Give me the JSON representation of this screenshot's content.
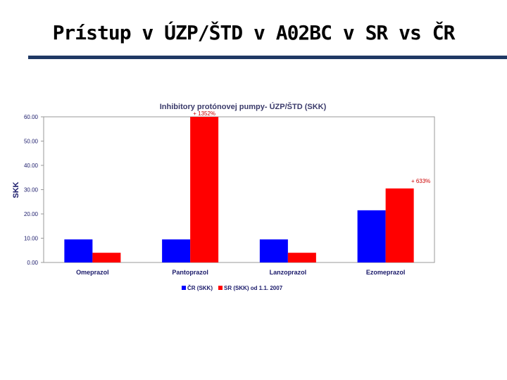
{
  "slide": {
    "title": "Prístup v ÚZP/ŠTD v A02BC v SR vs ČR"
  },
  "chart_data": {
    "type": "bar",
    "title": "Inhibitory protónovej pumpy- ÚZP/ŠTD (SKK)",
    "xlabel": "",
    "ylabel": "SKK",
    "ylim": [
      0,
      60
    ],
    "yticks": [
      0,
      10,
      20,
      30,
      40,
      50,
      60
    ],
    "ytick_labels": [
      "0.00",
      "10.00",
      "20.00",
      "30.00",
      "40.00",
      "50.00",
      "60.00"
    ],
    "categories": [
      "Omeprazol",
      "Pantoprazol",
      "Lanzoprazol",
      "Ezomeprazol"
    ],
    "series": [
      {
        "name": "ČR (SKK)",
        "color": "#0000ff",
        "values": [
          9.5,
          9.5,
          9.5,
          21.5
        ]
      },
      {
        "name": "SR (SKK) od 1.1. 2007",
        "color": "#ff0000",
        "values": [
          4.0,
          60.0,
          4.0,
          30.5
        ]
      }
    ],
    "annotations": [
      {
        "category_index": 1,
        "series_index": 1,
        "text": "+ 1352%"
      },
      {
        "category_index": 3,
        "series_index": 1,
        "text": "+ 633%"
      }
    ],
    "grid": false,
    "legend_position": "bottom"
  }
}
